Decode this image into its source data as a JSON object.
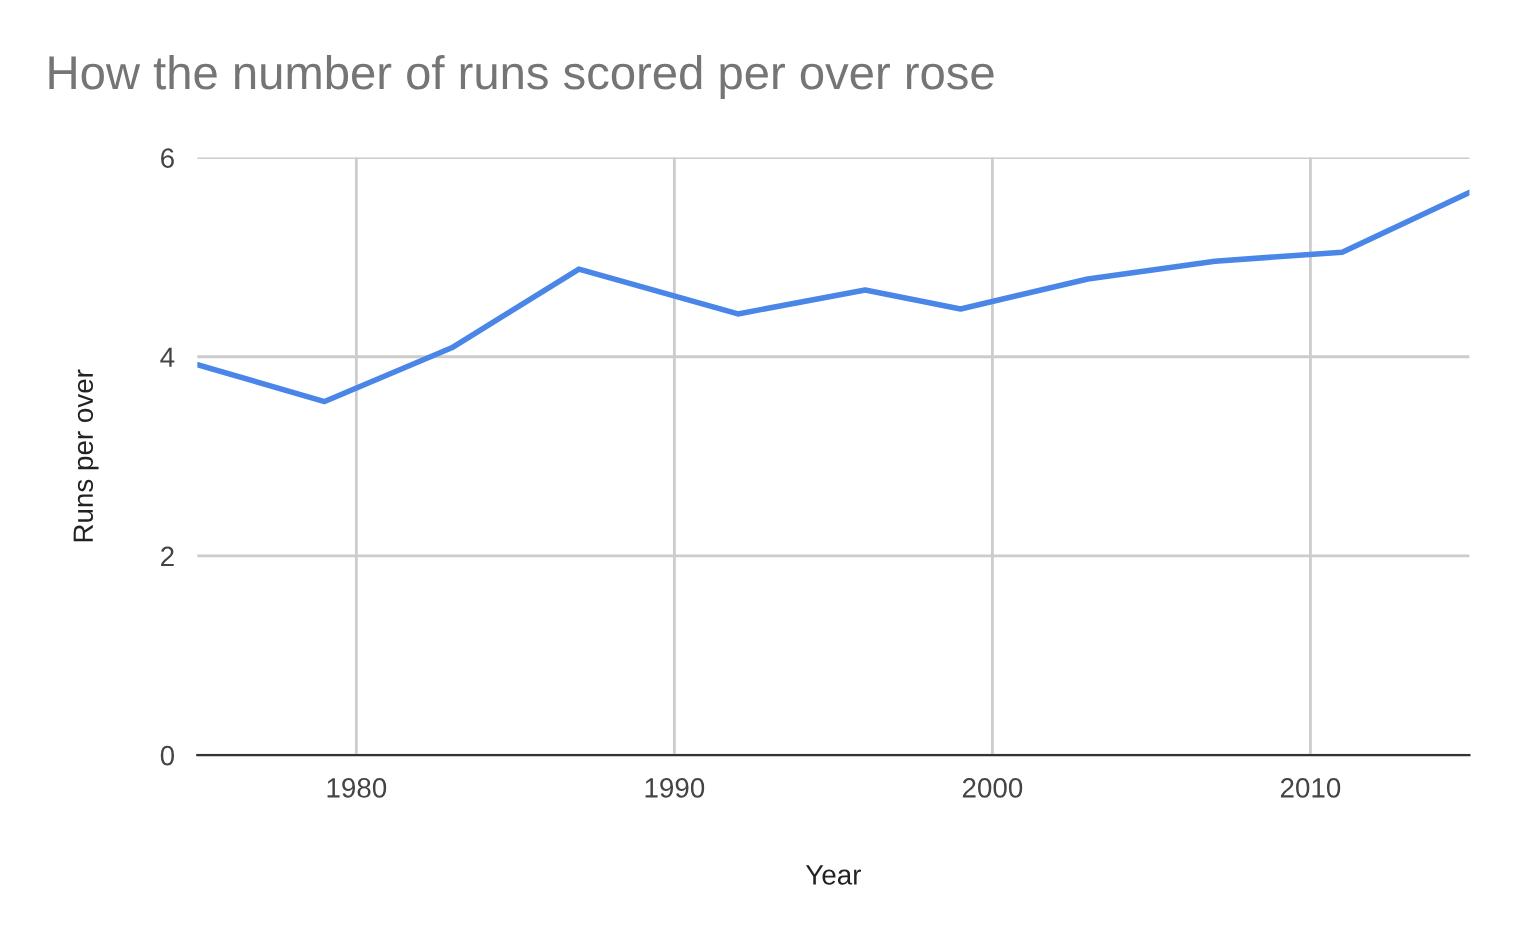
{
  "chart_data": {
    "type": "line",
    "title": "How the number of runs scored per over rose",
    "xlabel": "Year",
    "ylabel": "Runs per over",
    "x": [
      1975,
      1979,
      1983,
      1987,
      1992,
      1996,
      1999,
      2003,
      2007,
      2011,
      2015
    ],
    "series": [
      {
        "color": "#4a86e8",
        "values": [
          3.92,
          3.55,
          4.09,
          4.88,
          4.43,
          4.67,
          4.48,
          4.78,
          4.96,
          5.05,
          5.65
        ]
      }
    ],
    "xlim": [
      1975,
      2015
    ],
    "xticks": [
      1980,
      1990,
      2000,
      2010
    ],
    "ylim": [
      0,
      6
    ],
    "yticks": [
      0,
      2,
      4,
      6
    ],
    "grid": true
  }
}
